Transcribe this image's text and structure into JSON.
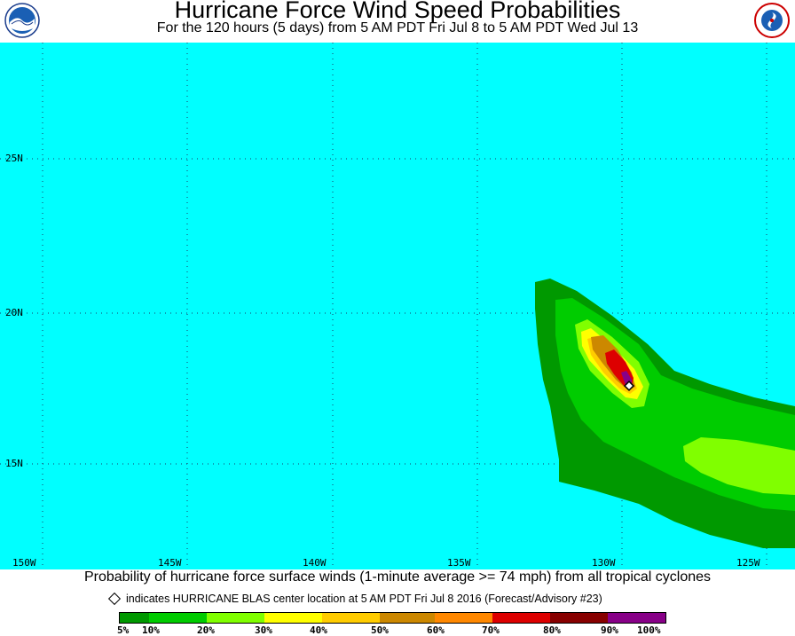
{
  "header": {
    "title": "Hurricane Force Wind Speed Probabilities",
    "subtitle": "For the 120 hours (5 days) from 5 AM PDT Fri Jul 8 to 5 AM PDT Wed Jul 13"
  },
  "logos": {
    "left": "noaa-logo",
    "right": "national-weather-service-logo"
  },
  "map": {
    "ocean_color": "#00ffff",
    "lat_labels": [
      "25N",
      "20N",
      "15N"
    ],
    "lon_labels": [
      "150W",
      "145W",
      "140W",
      "135W",
      "130W",
      "125W"
    ]
  },
  "caption": "Probability of hurricane force surface winds (1-minute average >= 74 mph) from all tropical cyclones",
  "storm_note": "indicates HURRICANE BLAS center location at 5 AM PDT Fri Jul 8 2016 (Forecast/Advisory #23)",
  "legend": {
    "colors": [
      "#009900",
      "#00cc00",
      "#80ff00",
      "#ffff00",
      "#ffcc00",
      "#cc8800",
      "#ff8800",
      "#dd0000",
      "#880000",
      "#880088"
    ],
    "labels": [
      "5%",
      "10%",
      "20%",
      "30%",
      "40%",
      "50%",
      "60%",
      "70%",
      "80%",
      "90%",
      "100%"
    ]
  }
}
